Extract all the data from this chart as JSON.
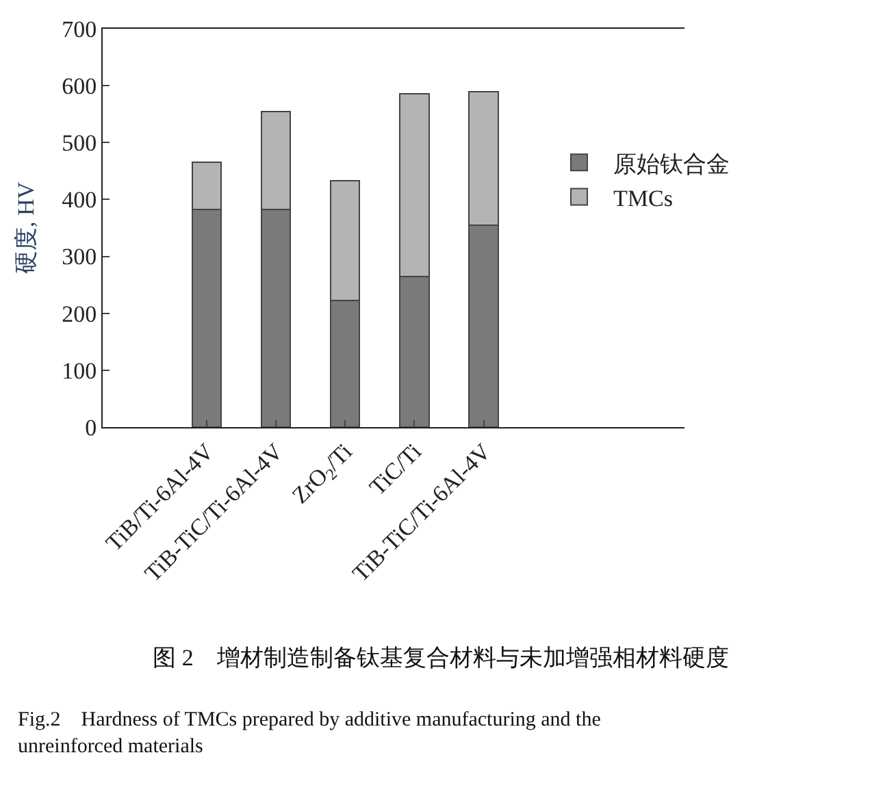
{
  "chart_data": {
    "type": "bar",
    "stacked": true,
    "ylabel": "硬度, HV",
    "categories": [
      "TiB/Ti-6Al-4V",
      "TiB-TiC/Ti-6Al-4V",
      "ZrO$_{2}$/Ti",
      "TiC/Ti",
      "TiB-TiC/Ti-6Al-4V"
    ],
    "series": [
      {
        "name": "原始钛合金",
        "color": "#7a7a7a",
        "values": [
          382,
          382,
          222,
          265,
          355
        ]
      },
      {
        "name": "TMCs",
        "color": "#b4b4b4",
        "values": [
          83,
          173,
          211,
          321,
          234
        ]
      }
    ],
    "ylim": [
      0,
      700
    ],
    "yticks": [
      0,
      100,
      200,
      300,
      400,
      500,
      600,
      700
    ],
    "legend": "right",
    "annotations": [
      "图 2　增材制造制备钛基复合材料与未加增强相材料硬度",
      "Fig.2　Hardness of TMCs prepared by additive manufacturing and the unreinforced materials"
    ]
  }
}
